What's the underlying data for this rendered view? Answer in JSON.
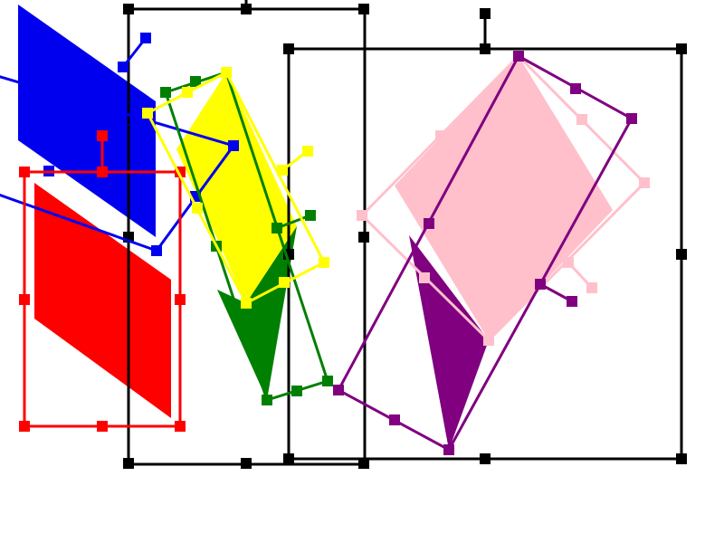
{
  "canvas": {
    "background": "#ffffff"
  },
  "colors": {
    "black": "#000000",
    "blue": "#0000ee",
    "red": "#ff0000",
    "yellow": "#ffff00",
    "green": "#008000",
    "pink": "#ffc0cb",
    "purple": "#800080"
  },
  "shapes": [
    {
      "id": "blue-parallelogram",
      "fill_color": "blue",
      "selected": true,
      "rotated": true
    },
    {
      "id": "red-parallelogram",
      "fill_color": "red",
      "selected": true,
      "rotated": false
    },
    {
      "id": "yellow-rhombus",
      "fill_color": "yellow",
      "selected": true,
      "rotated": true
    },
    {
      "id": "green-triangle",
      "fill_color": "green",
      "selected": true,
      "rotated": true
    },
    {
      "id": "pink-rhombus",
      "fill_color": "pink",
      "selected": true,
      "rotated": true
    },
    {
      "id": "purple-triangle",
      "fill_color": "purple",
      "selected": true,
      "rotated": true
    }
  ],
  "group_selections": [
    {
      "id": "left-group-selection",
      "color": "black"
    },
    {
      "id": "right-group-selection",
      "color": "black"
    }
  ],
  "handle_icon": "square-resize-handle",
  "rotate_handle_icon": "rotate-handle"
}
